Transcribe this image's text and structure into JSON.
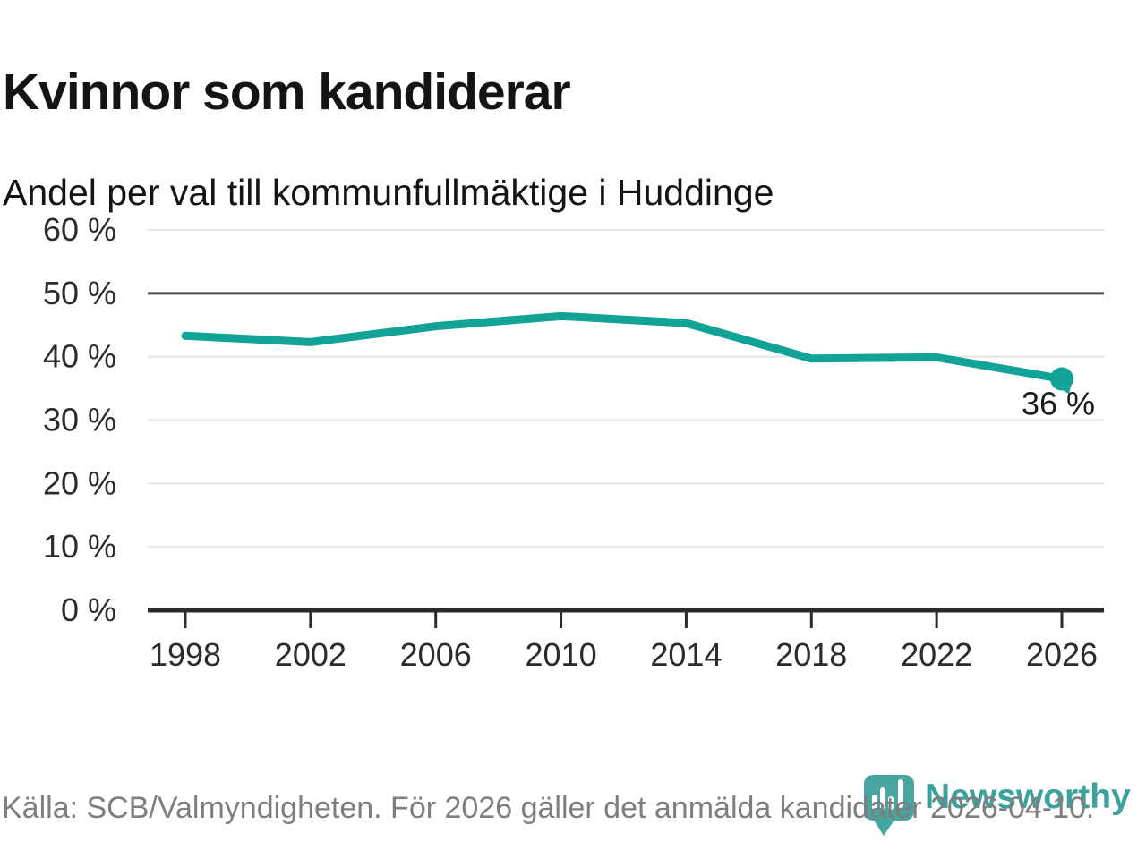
{
  "title": "Kvinnor som kandiderar",
  "subtitle": "Andel per val till kommunfullmäktige i Huddinge",
  "footer": {
    "source_text": "Källa: SCB/Valmyndigheten. För 2026 gäller det anmälda kandidater 2026-04-10.",
    "logo_text": "Newsworthy"
  },
  "colors": {
    "line": "#12a296",
    "logo_pin": "#48a5a0",
    "logo_word": "#3ba19c",
    "grid": "#e4e4e4",
    "grid_emphasis": "#4f4f4f",
    "axis": "#2b2b2b",
    "tick_label": "#2b2b2b",
    "end_label": "#1a1a1a",
    "footer_text": "#7e7e7e"
  },
  "chart_data": {
    "type": "line",
    "title": "Kvinnor som kandiderar",
    "subtitle": "Andel per val till kommunfullmäktige i Huddinge",
    "x": [
      1998,
      2002,
      2006,
      2010,
      2014,
      2018,
      2022,
      2026
    ],
    "x_tick_labels": [
      "1998",
      "2002",
      "2006",
      "2010",
      "2014",
      "2018",
      "2022",
      "2026"
    ],
    "values": [
      43.3,
      42.3,
      44.8,
      46.4,
      45.3,
      39.7,
      39.9,
      36.5
    ],
    "end_point_label": "36 %",
    "ylim": [
      0,
      60
    ],
    "y_tick_step": 10,
    "y_tick_labels": [
      "0 %",
      "10 %",
      "20 %",
      "30 %",
      "40 %",
      "50 %",
      "60 %"
    ],
    "emphasized_gridline": 50,
    "grid": true,
    "legend": "none"
  }
}
